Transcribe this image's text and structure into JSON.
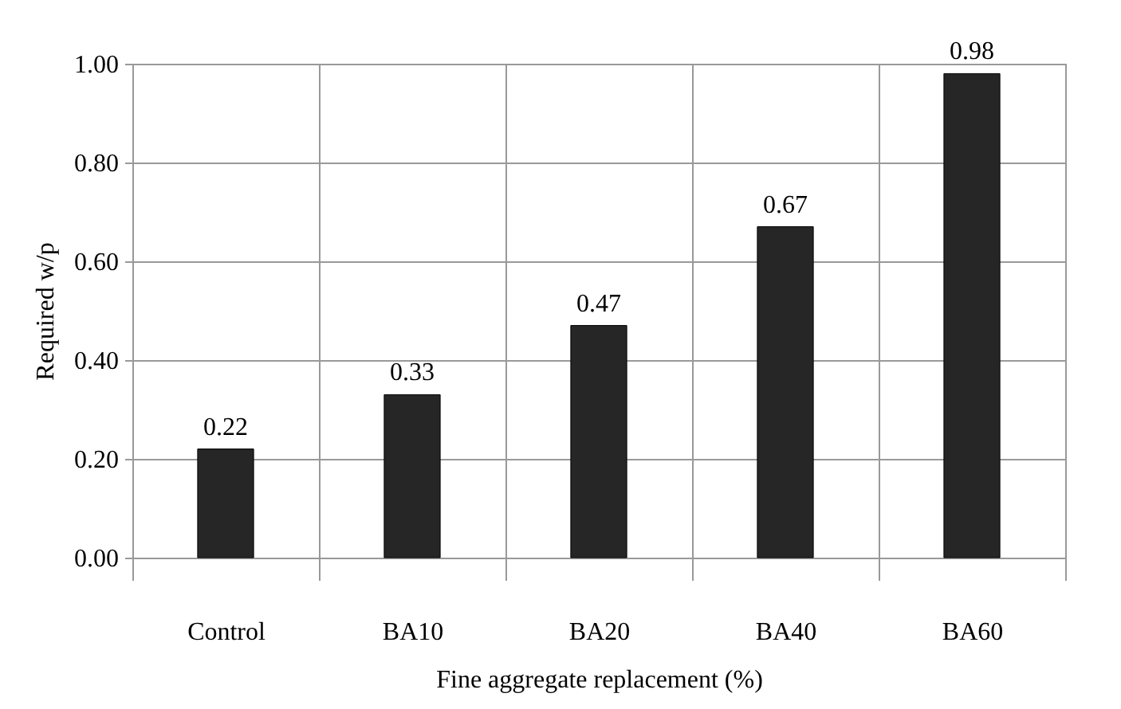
{
  "chart_data": {
    "type": "bar",
    "xlabel": "Fine aggregate replacement (%)",
    "ylabel": "Required w/p",
    "categories": [
      "Control",
      "BA10",
      "BA20",
      "BA40",
      "BA60"
    ],
    "values": [
      0.22,
      0.33,
      0.47,
      0.67,
      0.98
    ],
    "color": "#262626",
    "ylim": [
      0,
      1
    ],
    "yticks": [
      {
        "value": 0,
        "label": "0.00"
      },
      {
        "value": 0.2,
        "label": "0.20"
      },
      {
        "value": 0.4,
        "label": "0.40"
      },
      {
        "value": 0.6,
        "label": "0.60"
      },
      {
        "value": 0.8,
        "label": "0.80"
      },
      {
        "value": 1,
        "label": "1.00"
      }
    ],
    "grid": true,
    "data_labels": true
  }
}
